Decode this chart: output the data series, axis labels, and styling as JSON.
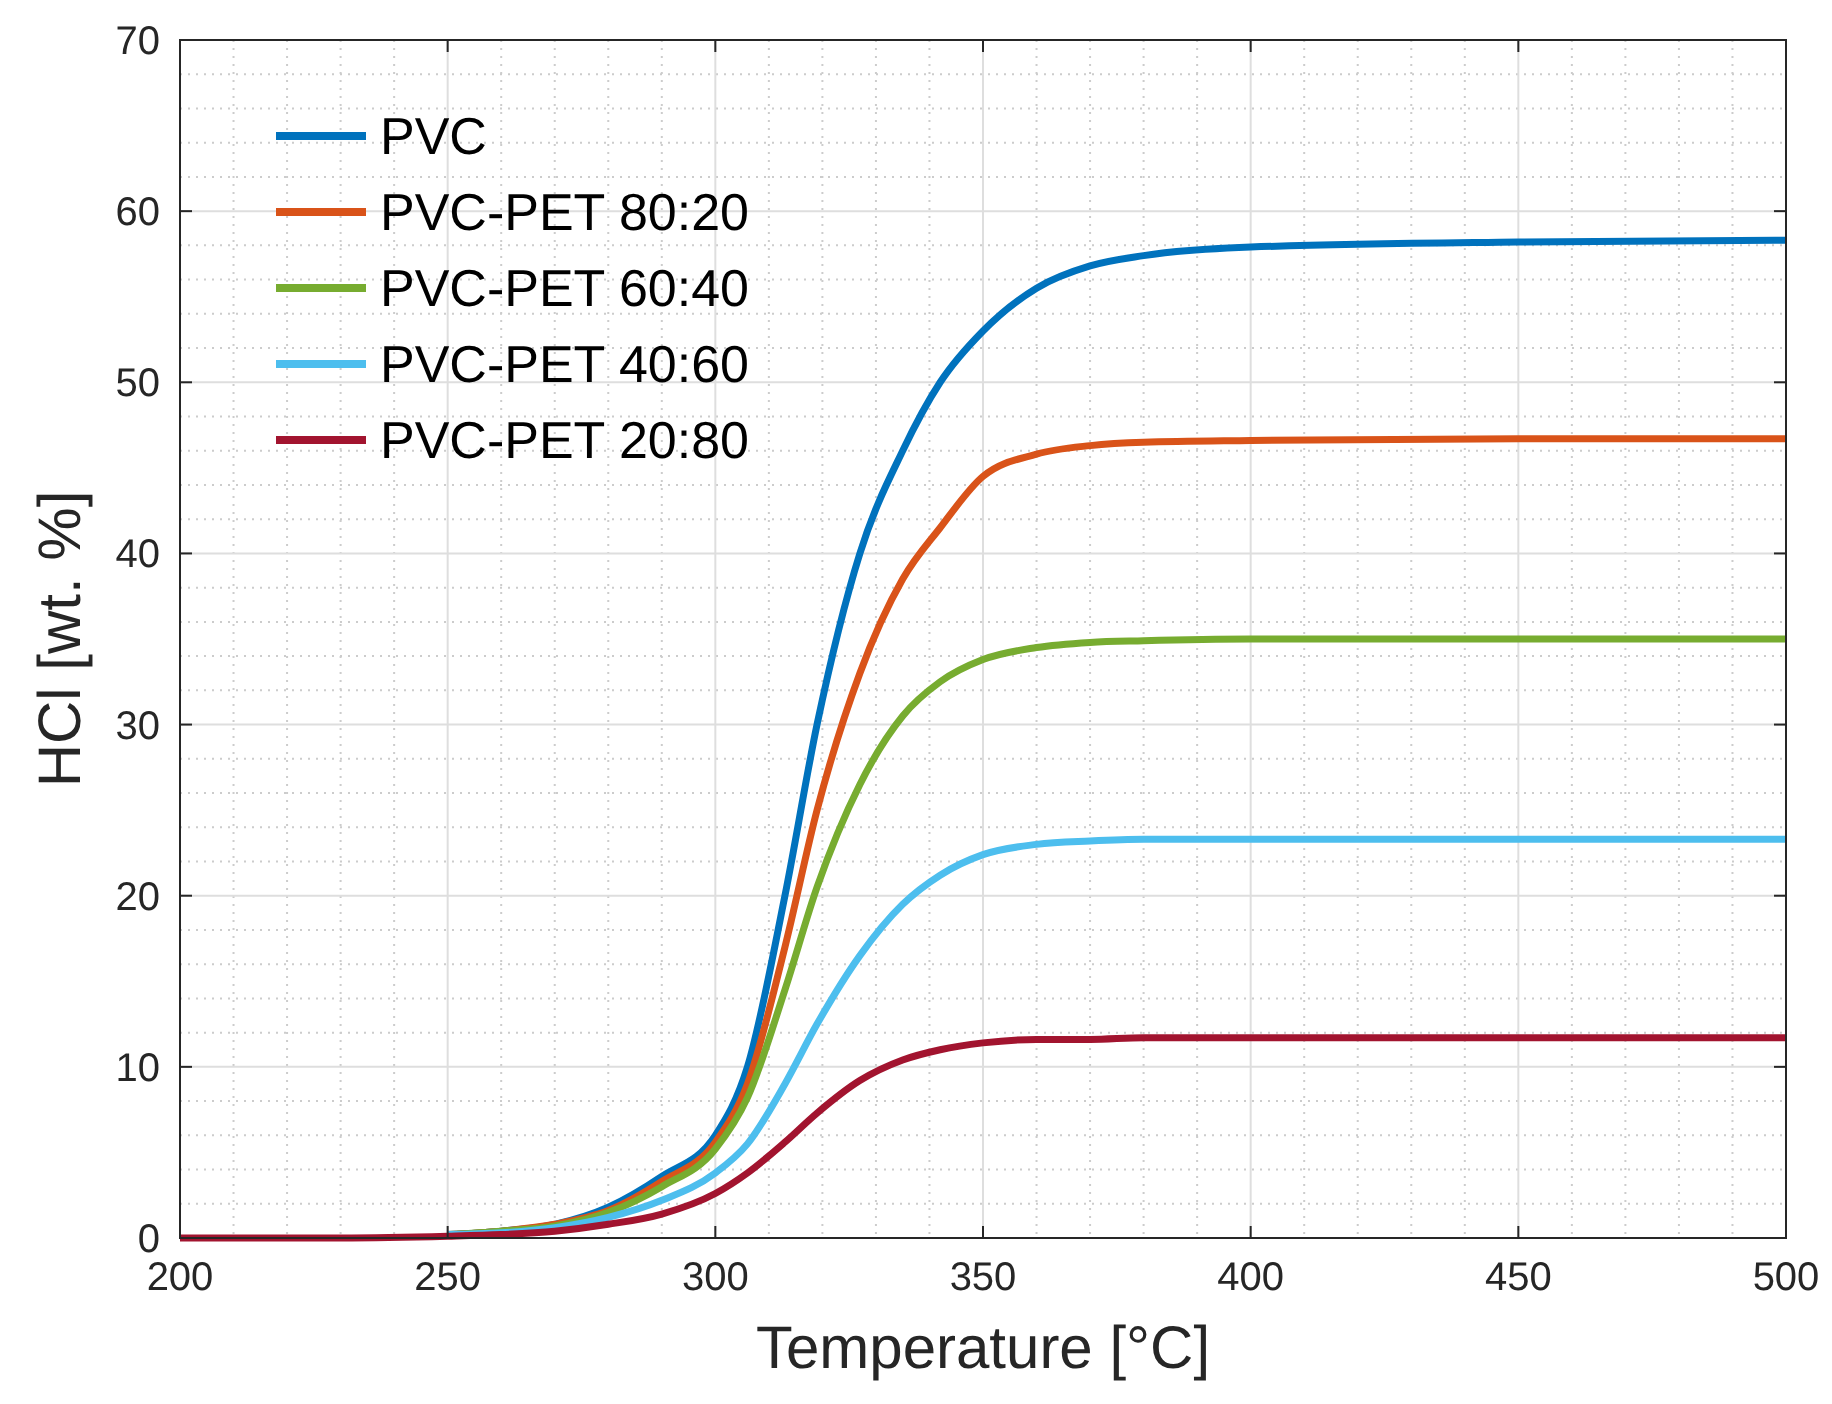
{
  "chart_data": {
    "type": "line",
    "xlabel": "Temperature [°C]",
    "ylabel": "HCl [wt. %]",
    "xlim": [
      200,
      500
    ],
    "xticks": [
      200,
      250,
      300,
      350,
      400,
      450,
      500
    ],
    "ylim": [
      0,
      70
    ],
    "yticks": [
      0,
      10,
      20,
      30,
      40,
      50,
      60,
      70
    ],
    "grid": true,
    "legend": "top left",
    "line_style": "solid",
    "marker": "none",
    "x": [
      200,
      230,
      250,
      260,
      270,
      280,
      290,
      300,
      306,
      313,
      319,
      327,
      335,
      342,
      350,
      360,
      370,
      380,
      400,
      450,
      500
    ],
    "series": [
      {
        "name": "PVC",
        "color": "#0072bd",
        "values": [
          null,
          null,
          0.2,
          0.4,
          0.8,
          1.8,
          3.6,
          6,
          10,
          20,
          30,
          40,
          46,
          50,
          53,
          55.5,
          56.8,
          57.4,
          57.9,
          58.2,
          58.3
        ]
      },
      {
        "name": "PVC-PET 80:20",
        "color": "#d95319",
        "values": [
          null,
          null,
          0.2,
          0.4,
          0.8,
          1.6,
          3.3,
          5.6,
          9,
          17,
          25,
          33,
          38.5,
          41.5,
          44.5,
          45.8,
          46.3,
          46.5,
          46.6,
          46.7,
          46.7
        ]
      },
      {
        "name": "PVC-PET 60:40",
        "color": "#77ac30",
        "values": [
          null,
          null,
          0.2,
          0.4,
          0.7,
          1.5,
          3,
          5.2,
          8.2,
          14.5,
          20.5,
          26.5,
          30.5,
          32.5,
          33.8,
          34.5,
          34.8,
          34.9,
          35,
          35,
          35
        ]
      },
      {
        "name": "PVC-PET 40:60",
        "color": "#4dbeee",
        "values": [
          null,
          null,
          0.2,
          0.3,
          0.6,
          1.2,
          2.2,
          3.8,
          5.5,
          9,
          12.5,
          16.5,
          19.5,
          21.2,
          22.4,
          23,
          23.2,
          23.3,
          23.3,
          23.3,
          23.3
        ]
      },
      {
        "name": "PVC-PET 20:80",
        "color": "#a2142f",
        "values": [
          0,
          0,
          0.1,
          0.2,
          0.4,
          0.8,
          1.4,
          2.6,
          3.8,
          5.6,
          7.3,
          9.2,
          10.4,
          11,
          11.4,
          11.6,
          11.6,
          11.7,
          11.7,
          11.7,
          11.7
        ]
      }
    ]
  }
}
